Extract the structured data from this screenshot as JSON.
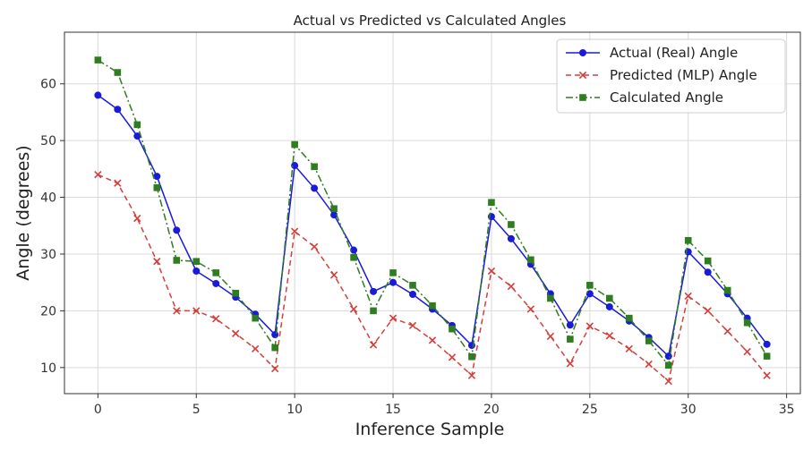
{
  "chart_data": {
    "type": "line",
    "title": "Actual vs Predicted vs Calculated Angles",
    "xlabel": "Inference Sample",
    "ylabel": "Angle (degrees)",
    "xlim": [
      -1.7,
      35.7
    ],
    "ylim": [
      5.4,
      69.1
    ],
    "xticks": [
      0,
      5,
      10,
      15,
      20,
      25,
      30,
      35
    ],
    "yticks": [
      10,
      20,
      30,
      40,
      50,
      60
    ],
    "grid": true,
    "legend_position": "top-right",
    "x": [
      0,
      1,
      2,
      3,
      4,
      5,
      6,
      7,
      8,
      9,
      10,
      11,
      12,
      13,
      14,
      15,
      16,
      17,
      18,
      19,
      20,
      21,
      22,
      23,
      24,
      25,
      26,
      27,
      28,
      29,
      30,
      31,
      32,
      33,
      34
    ],
    "series": [
      {
        "name": "Actual (Real) Angle",
        "color": "#1a1adb",
        "line": "solid",
        "marker": "circle",
        "values": [
          58.0,
          55.5,
          50.8,
          43.7,
          34.2,
          27.0,
          24.8,
          22.4,
          19.4,
          15.8,
          45.6,
          41.6,
          36.9,
          30.7,
          23.4,
          25.0,
          22.9,
          20.3,
          17.4,
          13.9,
          36.6,
          32.7,
          28.2,
          23.0,
          17.5,
          23.0,
          20.7,
          18.2,
          15.3,
          12.0,
          30.4,
          26.8,
          23.0,
          18.7,
          14.1
        ]
      },
      {
        "name": "Predicted (MLP) Angle",
        "color": "#d43f3a",
        "line": "dashed",
        "marker": "x",
        "values": [
          44.0,
          42.5,
          36.3,
          28.7,
          20.0,
          20.0,
          18.6,
          16.0,
          13.3,
          9.8,
          34.0,
          31.3,
          26.3,
          20.3,
          14.0,
          18.7,
          17.4,
          14.8,
          11.8,
          8.6,
          27.0,
          24.3,
          20.3,
          15.5,
          10.7,
          17.3,
          15.6,
          13.3,
          10.6,
          7.6,
          22.6,
          20.0,
          16.4,
          12.8,
          8.6
        ]
      },
      {
        "name": "Calculated Angle",
        "color": "#2e7d1e",
        "line": "dashdot",
        "marker": "square",
        "values": [
          64.2,
          62.0,
          52.8,
          41.7,
          28.9,
          28.7,
          26.7,
          23.1,
          18.7,
          13.5,
          49.3,
          45.4,
          38.0,
          29.4,
          20.0,
          26.7,
          24.5,
          20.9,
          16.8,
          11.9,
          39.1,
          35.2,
          29.0,
          22.2,
          15.0,
          24.5,
          22.2,
          18.7,
          14.7,
          10.4,
          32.4,
          28.8,
          23.6,
          17.9,
          12.0
        ]
      }
    ]
  }
}
